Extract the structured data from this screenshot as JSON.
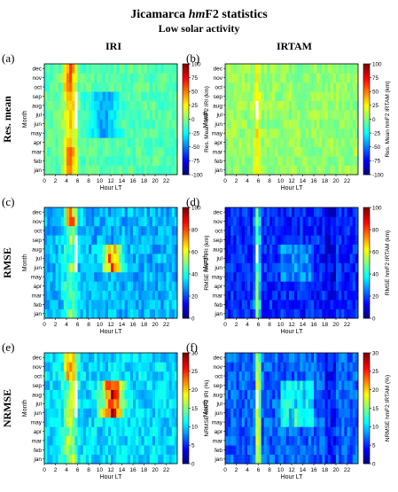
{
  "figure": {
    "title_main": "Jicamarca ",
    "title_italic": "hm",
    "title_tail": "F2 statistics",
    "subtitle": "Low solar activity",
    "column_labels": [
      "IRI",
      "IRTAM"
    ],
    "row_labels": [
      "Res. mean",
      "RMSE",
      "NRMSE"
    ],
    "panel_letters": [
      "(a)",
      "(b)",
      "(c)",
      "(d)",
      "(e)",
      "(f)"
    ]
  },
  "colors": {
    "colormap": "jet",
    "jet_stops": [
      "#00007f",
      "#0000ff",
      "#007fff",
      "#00ffff",
      "#7fff7f",
      "#ffff00",
      "#ff7f00",
      "#ff0000",
      "#7f0000"
    ]
  },
  "chart_data": [
    {
      "id": "a",
      "type": "heatmap",
      "xlabel": "Hour LT",
      "ylabel": "Month",
      "x_ticks": [
        0,
        2,
        4,
        6,
        8,
        10,
        12,
        14,
        16,
        18,
        20,
        22
      ],
      "y_categories": [
        "jan",
        "feb",
        "mar",
        "apr",
        "may",
        "jun",
        "jul",
        "aug",
        "sep",
        "oct",
        "nov",
        "dec"
      ],
      "xlim": [
        0,
        24
      ],
      "colorbar": {
        "label": "Res. Mean hmF2 IRI (km)",
        "min": -100,
        "max": 100,
        "ticks": [
          -100,
          -75,
          -50,
          -25,
          0,
          25,
          50,
          75,
          100
        ]
      },
      "grid": false
    },
    {
      "id": "b",
      "type": "heatmap",
      "xlabel": "Hour LT",
      "ylabel": "Month",
      "x_ticks": [
        0,
        2,
        4,
        6,
        8,
        10,
        12,
        14,
        16,
        18,
        20,
        22
      ],
      "y_categories": [
        "jan",
        "feb",
        "mar",
        "apr",
        "may",
        "jun",
        "jul",
        "aug",
        "sep",
        "oct",
        "nov",
        "dec"
      ],
      "xlim": [
        0,
        24
      ],
      "colorbar": {
        "label": "Res. Mean hmF2 IRTAM (km)",
        "min": -100,
        "max": 100,
        "ticks": [
          -100,
          -75,
          -50,
          -25,
          0,
          25,
          50,
          75,
          100
        ]
      },
      "grid": false
    },
    {
      "id": "c",
      "type": "heatmap",
      "xlabel": "Hour LT",
      "ylabel": "Month",
      "x_ticks": [
        0,
        2,
        4,
        6,
        8,
        10,
        12,
        14,
        16,
        18,
        20,
        22
      ],
      "y_categories": [
        "jan",
        "feb",
        "mar",
        "apr",
        "may",
        "jun",
        "jul",
        "aug",
        "sep",
        "oct",
        "nov",
        "dec"
      ],
      "xlim": [
        0,
        24
      ],
      "colorbar": {
        "label": "RMSE hmF2 IRI (km)",
        "min": 0,
        "max": 100,
        "ticks": [
          0,
          20,
          40,
          60,
          80,
          100
        ]
      },
      "grid": false
    },
    {
      "id": "d",
      "type": "heatmap",
      "xlabel": "Hour LT",
      "ylabel": "Month",
      "x_ticks": [
        0,
        2,
        4,
        6,
        8,
        10,
        12,
        14,
        16,
        18,
        20,
        22
      ],
      "y_categories": [
        "jan",
        "feb",
        "mar",
        "apr",
        "may",
        "jun",
        "jul",
        "aug",
        "sep",
        "oct",
        "nov",
        "dec"
      ],
      "xlim": [
        0,
        24
      ],
      "colorbar": {
        "label": "RMSE hmF2 IRTAM (km)",
        "min": 0,
        "max": 100,
        "ticks": [
          0,
          20,
          40,
          60,
          80,
          100
        ]
      },
      "grid": false
    },
    {
      "id": "e",
      "type": "heatmap",
      "xlabel": "Hour LT",
      "ylabel": "Month",
      "x_ticks": [
        0,
        2,
        4,
        6,
        8,
        10,
        12,
        14,
        16,
        18,
        20,
        22
      ],
      "y_categories": [
        "jan",
        "feb",
        "mar",
        "apr",
        "may",
        "jun",
        "jul",
        "aug",
        "sep",
        "oct",
        "nov",
        "dec"
      ],
      "xlim": [
        0,
        24
      ],
      "colorbar": {
        "label": "NRMSE hmF2 IRI (%)",
        "min": 0,
        "max": 30,
        "ticks": [
          0,
          5,
          10,
          15,
          20,
          25,
          30
        ]
      },
      "grid": false
    },
    {
      "id": "f",
      "type": "heatmap",
      "xlabel": "Hour LT",
      "ylabel": "Month",
      "x_ticks": [
        0,
        2,
        4,
        6,
        8,
        10,
        12,
        14,
        16,
        18,
        20,
        22
      ],
      "y_categories": [
        "jan",
        "feb",
        "mar",
        "apr",
        "may",
        "jun",
        "jul",
        "aug",
        "sep",
        "oct",
        "nov",
        "dec"
      ],
      "xlim": [
        0,
        24
      ],
      "colorbar": {
        "label": "NRMSE hmF2 IRTAM (%)",
        "min": 0,
        "max": 30,
        "ticks": [
          0,
          5,
          10,
          15,
          20,
          25,
          30
        ]
      },
      "grid": false
    }
  ]
}
